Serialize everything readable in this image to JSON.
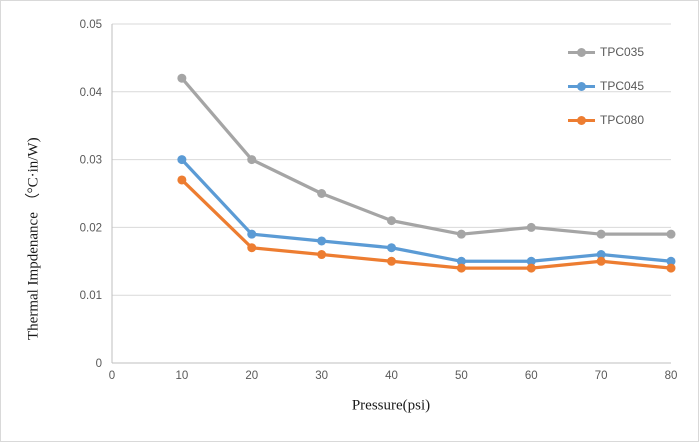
{
  "chart_data": {
    "type": "line",
    "title": "",
    "xlabel": "Pressure(psi)",
    "ylabel": "Thermal Impdenance （°C·in/W)",
    "x": [
      10,
      20,
      30,
      40,
      50,
      60,
      70,
      80
    ],
    "series": [
      {
        "name": "TPC035",
        "color": "#A5A5A5",
        "values": [
          0.042,
          0.03,
          0.025,
          0.021,
          0.019,
          0.02,
          0.019,
          0.019
        ]
      },
      {
        "name": "TPC045",
        "color": "#5B9BD5",
        "values": [
          0.03,
          0.019,
          0.018,
          0.017,
          0.015,
          0.015,
          0.016,
          0.015
        ]
      },
      {
        "name": "TPC080",
        "color": "#ED7D31",
        "values": [
          0.027,
          0.017,
          0.016,
          0.015,
          0.014,
          0.014,
          0.015,
          0.014
        ]
      }
    ],
    "xlim": [
      0,
      80
    ],
    "ylim": [
      0,
      0.05
    ],
    "x_tick_values": [
      0,
      10,
      20,
      30,
      40,
      50,
      60,
      70,
      80
    ],
    "x_tick_labels": [
      "0",
      "10",
      "20",
      "30",
      "40",
      "50",
      "60",
      "70",
      "80"
    ],
    "y_tick_values": [
      0,
      0.01,
      0.02,
      0.03,
      0.04,
      0.05
    ],
    "y_tick_labels": [
      "0",
      "0.01",
      "0.02",
      "0.03",
      "0.04",
      "0.05"
    ],
    "grid": "horizontal-only",
    "legend_position": "upper-right",
    "legend": [
      "TPC035",
      "TPC045",
      "TPC080"
    ]
  },
  "style": {
    "grid_color": "#D9D9D9",
    "axis_color": "#BFBFBF",
    "tick_label_color": "#595959",
    "legend_text_color": "#595959",
    "axis_title_color": "#1a1a1a",
    "figure_border_color": "#D9D9D9",
    "background": "#FFFFFF"
  }
}
